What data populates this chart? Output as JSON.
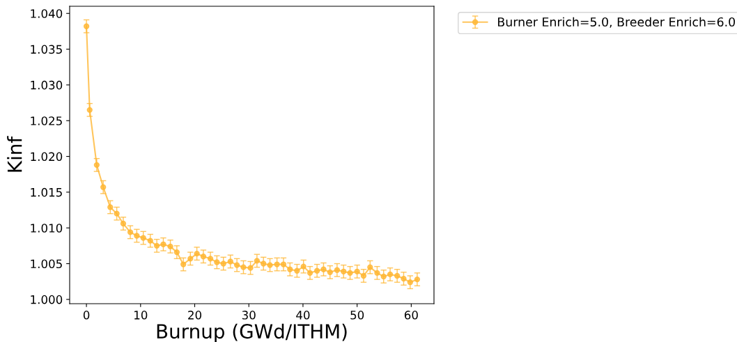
{
  "chart_data": {
    "type": "line",
    "xlabel": "Burnup (GWd/ITHM)",
    "ylabel": "Kinf",
    "x": [
      0,
      0.6,
      1.9,
      3.1,
      4.4,
      5.6,
      6.8,
      8.1,
      9.3,
      10.5,
      11.8,
      13.0,
      14.2,
      15.5,
      16.7,
      17.9,
      19.2,
      20.4,
      21.6,
      22.9,
      24.1,
      25.3,
      26.6,
      27.8,
      29.0,
      30.3,
      31.5,
      32.7,
      33.9,
      35.2,
      36.4,
      37.6,
      38.9,
      40.1,
      41.3,
      42.6,
      43.8,
      45.0,
      46.3,
      47.5,
      48.7,
      50.0,
      51.2,
      52.4,
      53.7,
      54.9,
      56.1,
      57.4,
      58.6,
      59.8,
      61.1
    ],
    "series": [
      {
        "name": "Burner Enrich=5.0, Breeder Enrich=6.0",
        "color": "#ffb733",
        "values": [
          1.0382,
          1.0265,
          1.0188,
          1.0157,
          1.0129,
          1.012,
          1.0106,
          1.0094,
          1.0089,
          1.0086,
          1.0082,
          1.0075,
          1.0077,
          1.0074,
          1.0066,
          1.0049,
          1.0057,
          1.0064,
          1.006,
          1.0057,
          1.0052,
          1.005,
          1.0053,
          1.0048,
          1.0045,
          1.0044,
          1.0054,
          1.005,
          1.0048,
          1.0049,
          1.0049,
          1.0042,
          1.004,
          1.0046,
          1.0037,
          1.004,
          1.0042,
          1.0038,
          1.0041,
          1.0039,
          1.0037,
          1.0039,
          1.0033,
          1.0045,
          1.0037,
          1.0032,
          1.0035,
          1.0033,
          1.0029,
          1.0024,
          1.0028
        ],
        "errors": [
          0.0009,
          0.0009,
          0.0009,
          0.0009,
          0.0009,
          0.0009,
          0.0009,
          0.0009,
          0.0009,
          0.0009,
          0.0009,
          0.0009,
          0.0009,
          0.0009,
          0.0009,
          0.0009,
          0.0009,
          0.0009,
          0.0009,
          0.0009,
          0.0009,
          0.0009,
          0.0009,
          0.0009,
          0.0009,
          0.0009,
          0.0009,
          0.0009,
          0.0009,
          0.0009,
          0.0009,
          0.0009,
          0.0009,
          0.0009,
          0.0009,
          0.0009,
          0.0009,
          0.0009,
          0.0009,
          0.0009,
          0.0009,
          0.0009,
          0.0009,
          0.0009,
          0.0009,
          0.0009,
          0.0009,
          0.0009,
          0.0009,
          0.0009,
          0.0009
        ]
      }
    ],
    "xlim": [
      -3.1,
      64.2
    ],
    "xticks": [
      0,
      10,
      20,
      30,
      40,
      50,
      60
    ],
    "ylim": [
      0.9994,
      1.041
    ],
    "yticks": [
      {
        "value": 1.0,
        "label": "1.000"
      },
      {
        "value": 1.005,
        "label": "1.005"
      },
      {
        "value": 1.01,
        "label": "1.010"
      },
      {
        "value": 1.015,
        "label": "1.015"
      },
      {
        "value": 1.02,
        "label": "1.020"
      },
      {
        "value": 1.025,
        "label": "1.025"
      },
      {
        "value": 1.03,
        "label": "1.030"
      },
      {
        "value": 1.035,
        "label": "1.035"
      },
      {
        "value": 1.04,
        "label": "1.040"
      }
    ],
    "marker": "circle",
    "line_style": "solid",
    "grid": false,
    "legend": "top right"
  }
}
